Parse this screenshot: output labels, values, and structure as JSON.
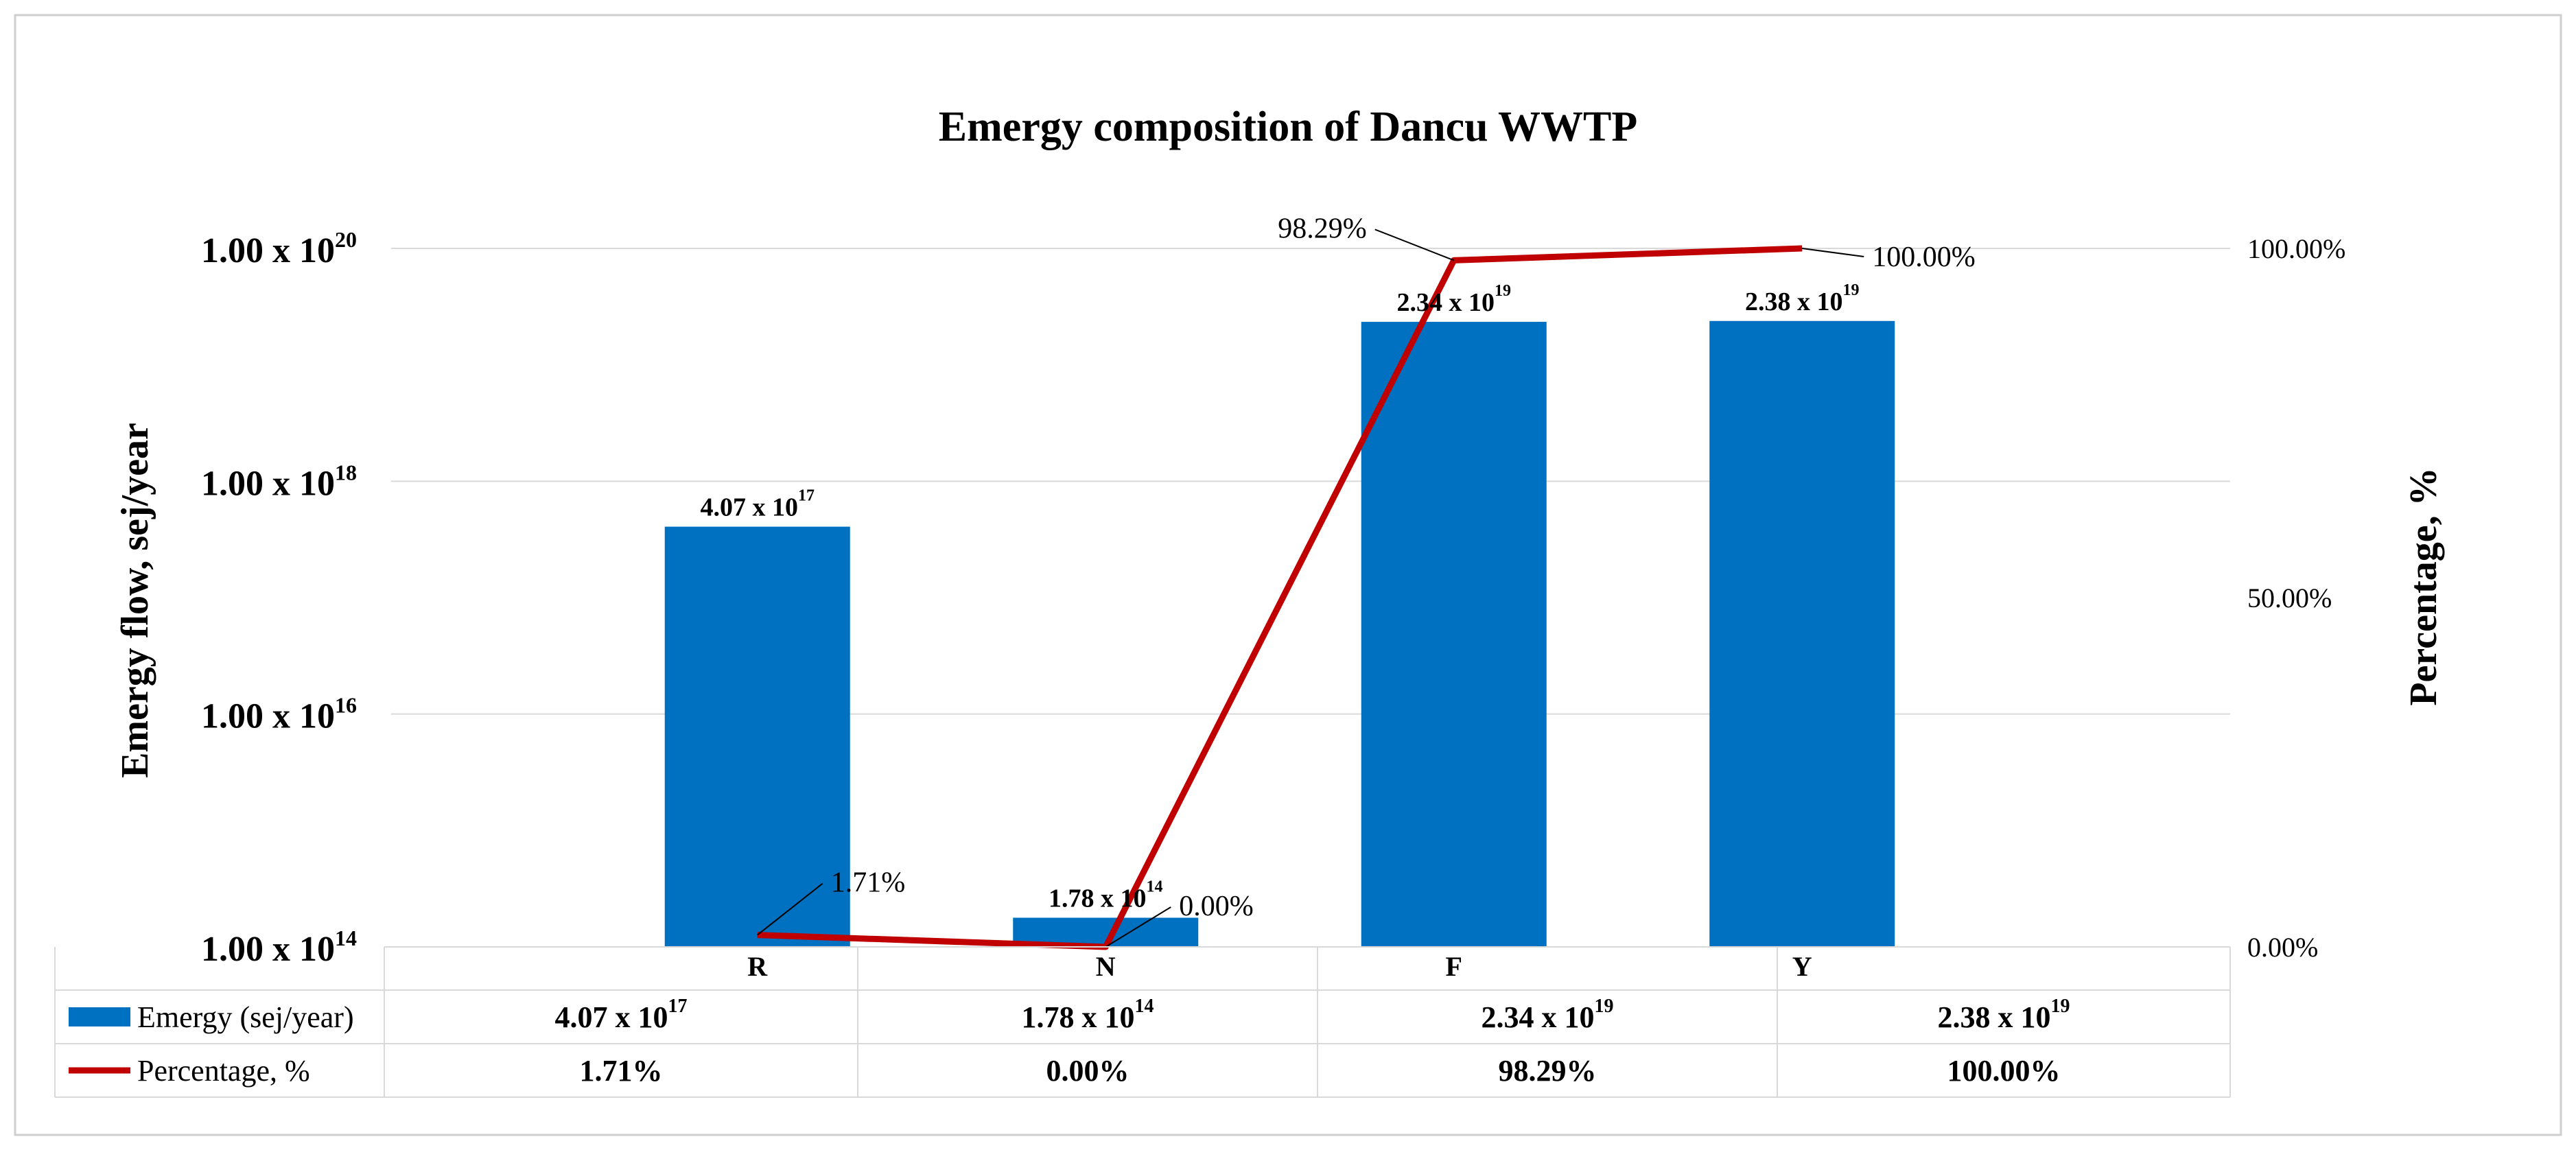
{
  "chart_data": {
    "type": "bar",
    "title": "Emergy composition of Dancu WWTP",
    "ylabel": "Emergy flow,  sej/year",
    "y2label": "Percentage, %",
    "yscale": "log",
    "ylim": [
      100000000000000.0,
      1e+20
    ],
    "y_ticks": [
      {
        "value": 100000000000000.0,
        "mantissa": "1.00 x 10",
        "exp": "14"
      },
      {
        "value": 1e+16,
        "mantissa": "1.00 x 10",
        "exp": "16"
      },
      {
        "value": 1e+18,
        "mantissa": "1.00 x 10",
        "exp": "18"
      },
      {
        "value": 1e+20,
        "mantissa": "1.00 x 10",
        "exp": "20"
      }
    ],
    "y2lim": [
      0,
      100
    ],
    "y2_ticks": [
      {
        "value": 0,
        "label": "0.00%"
      },
      {
        "value": 50,
        "label": "50.00%"
      },
      {
        "value": 100,
        "label": "100.00%"
      }
    ],
    "categories": [
      "R",
      "N",
      "F",
      "Y"
    ],
    "series": [
      {
        "name": "Emergy (sej/year)",
        "type": "bar",
        "axis": "left",
        "color": "#0070C0",
        "values": [
          4.07e+17,
          178000000000000.0,
          2.34e+19,
          2.38e+19
        ],
        "labels": [
          {
            "mantissa": "4.07 x 10",
            "exp": "17"
          },
          {
            "mantissa": "1.78 x 10",
            "exp": "14"
          },
          {
            "mantissa": "2.34 x 10",
            "exp": "19"
          },
          {
            "mantissa": "2.38 x 10",
            "exp": "19"
          }
        ]
      },
      {
        "name": "Percentage, %",
        "type": "line",
        "axis": "right",
        "color": "#C00000",
        "values": [
          1.71,
          0.0,
          98.29,
          100.0
        ],
        "labels": [
          "1.71%",
          "0.00%",
          "98.29%",
          "100.00%"
        ]
      }
    ],
    "grid": true,
    "legend": "data-table"
  }
}
